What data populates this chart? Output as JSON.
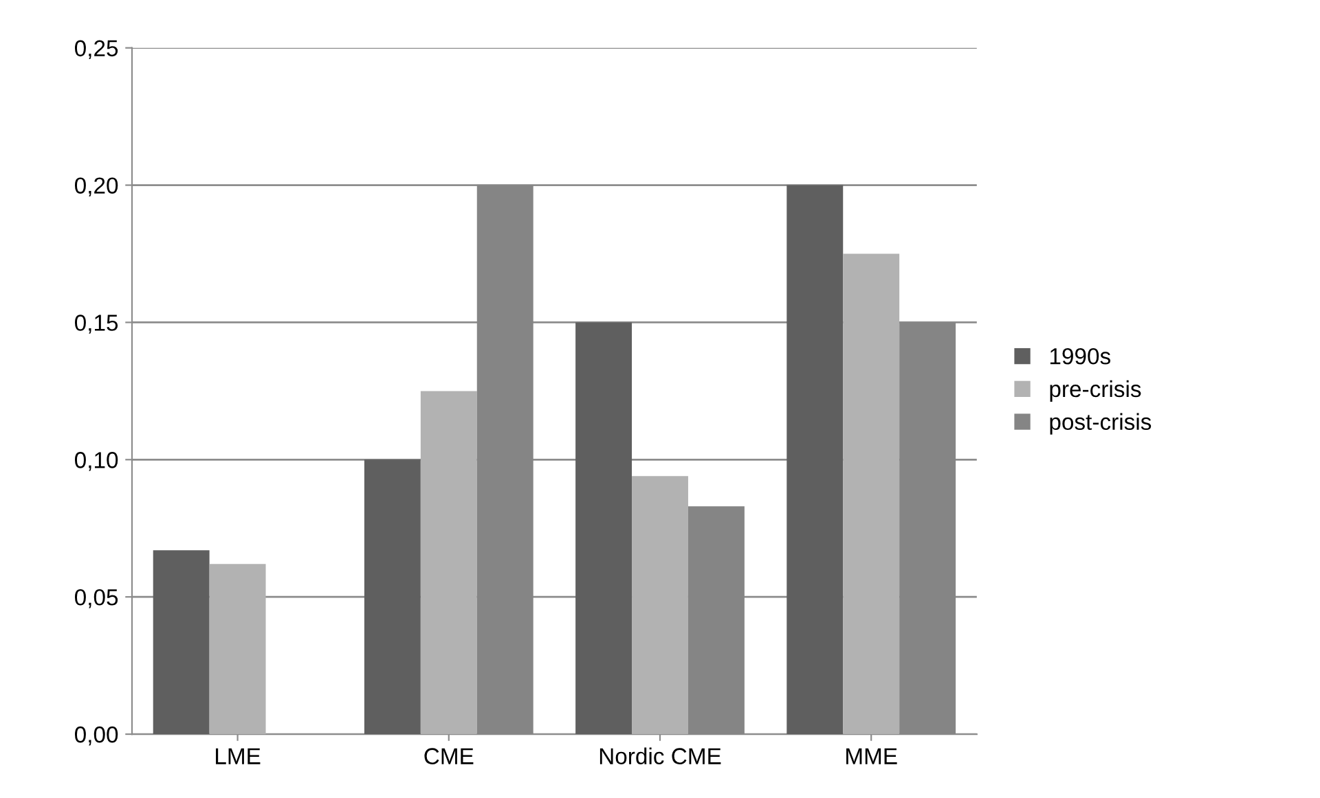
{
  "chart_data": {
    "type": "bar",
    "categories": [
      "LME",
      "CME",
      "Nordic CME",
      "MME"
    ],
    "series": [
      {
        "name": "1990s",
        "color": "#5f5f5f",
        "values": [
          0.067,
          0.1,
          0.15,
          0.2
        ]
      },
      {
        "name": "pre-crisis",
        "color": "#b2b2b2",
        "values": [
          0.062,
          0.125,
          0.094,
          0.175
        ]
      },
      {
        "name": "post-crisis",
        "color": "#858585",
        "values": [
          0,
          0.2,
          0.083,
          0.15
        ]
      }
    ],
    "ylim": [
      0,
      0.25
    ],
    "yticks": [
      {
        "value": 0,
        "label": "0,00"
      },
      {
        "value": 0.05,
        "label": "0,05"
      },
      {
        "value": 0.1,
        "label": "0,10"
      },
      {
        "value": 0.15,
        "label": "0,15"
      },
      {
        "value": 0.2,
        "label": "0,20"
      },
      {
        "value": 0.25,
        "label": "0,25"
      }
    ],
    "grid": "y",
    "legend": "right"
  }
}
